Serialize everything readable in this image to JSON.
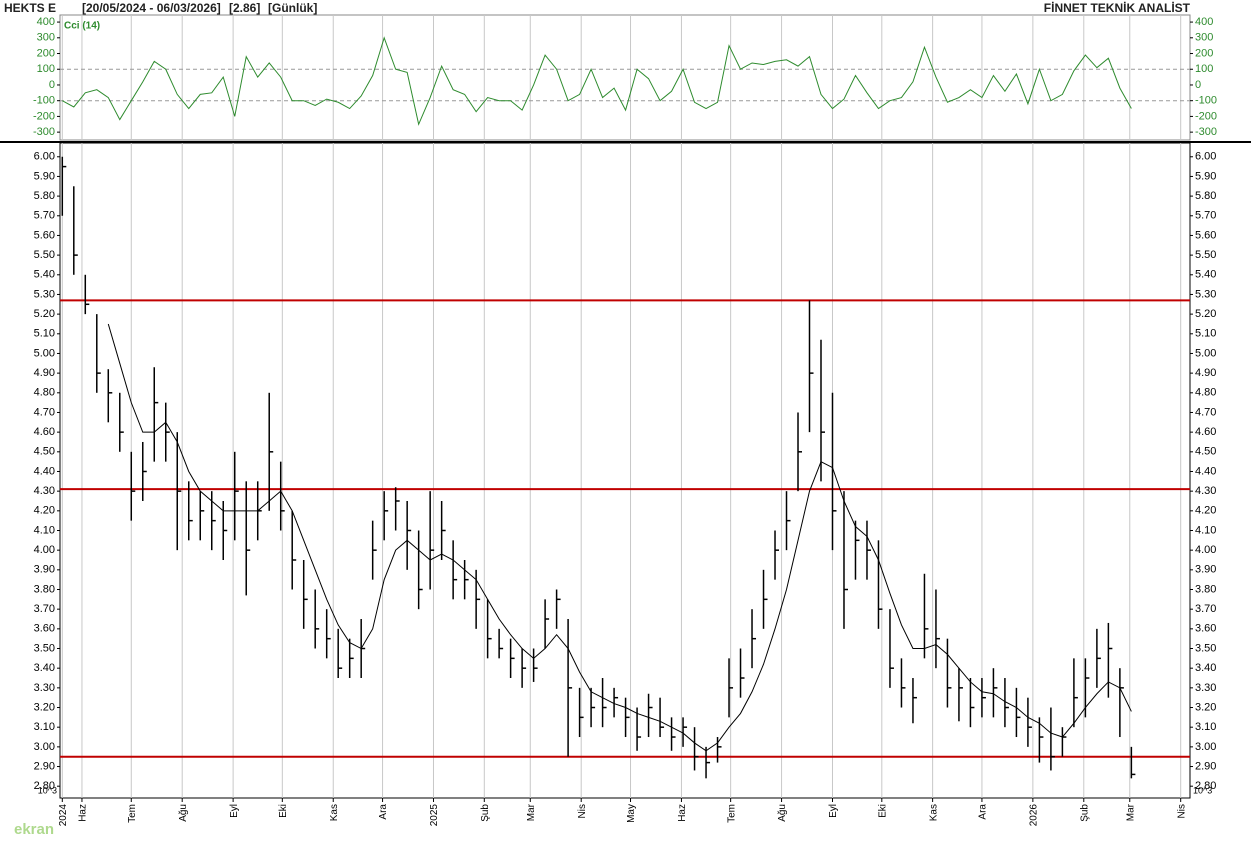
{
  "header": {
    "symbol": "HEKTS E",
    "range": "[20/05/2024 - 06/03/2026]",
    "last": "[2.86]",
    "period": "[Günlük]",
    "provider": "FİNNET TEKNİK ANALİST"
  },
  "watermark": "ekran",
  "chart_data": [
    {
      "type": "line",
      "series": [
        {
          "name": "Cci (14)",
          "color": "#2e8b2e",
          "values": [
            -100,
            -140,
            -50,
            -30,
            -80,
            -220,
            -100,
            20,
            150,
            100,
            -60,
            -150,
            -60,
            -50,
            50,
            -200,
            180,
            50,
            140,
            50,
            -100,
            -100,
            -130,
            -90,
            -110,
            -150,
            -70,
            60,
            300,
            100,
            80,
            -250,
            -80,
            120,
            -30,
            -60,
            -170,
            -80,
            -100,
            -100,
            -160,
            0,
            190,
            100,
            -100,
            -60,
            100,
            -80,
            -20,
            -160,
            100,
            40,
            -100,
            -40,
            100,
            -110,
            -150,
            -110,
            250,
            100,
            140,
            130,
            150,
            160,
            120,
            180,
            -60,
            -150,
            -90,
            60,
            -50,
            -150,
            -100,
            -80,
            20,
            240,
            50,
            -110,
            -80,
            -30,
            -80,
            60,
            -40,
            70,
            -120,
            100,
            -100,
            -60,
            90,
            190,
            110,
            170,
            -20,
            -150
          ]
        }
      ],
      "xlim": [
        -0.2,
        98.1
      ],
      "ylim": [
        -350,
        445
      ],
      "yticks": [
        -300,
        -200,
        -100,
        0,
        100,
        200,
        300,
        400
      ],
      "ref_lines": [
        -100,
        100
      ]
    },
    {
      "type": "ohlc",
      "color": "#000000",
      "unit_label": "10^3",
      "grid": true,
      "high": [
        6.0,
        5.85,
        5.4,
        5.2,
        4.92,
        4.8,
        4.5,
        4.55,
        4.93,
        4.75,
        4.6,
        4.35,
        4.3,
        4.3,
        4.25,
        4.5,
        4.35,
        4.35,
        4.8,
        4.45,
        4.2,
        3.95,
        3.8,
        3.7,
        3.6,
        3.55,
        3.65,
        4.15,
        4.3,
        4.32,
        4.25,
        4.1,
        4.3,
        4.25,
        4.05,
        3.95,
        3.9,
        3.75,
        3.6,
        3.55,
        3.5,
        3.5,
        3.75,
        3.8,
        3.65,
        3.3,
        3.3,
        3.35,
        3.3,
        3.25,
        3.2,
        3.27,
        3.25,
        3.15,
        3.15,
        3.1,
        3.0,
        3.05,
        3.45,
        3.5,
        3.7,
        3.9,
        4.1,
        4.3,
        4.7,
        5.27,
        5.07,
        4.8,
        4.3,
        4.15,
        4.15,
        4.05,
        3.7,
        3.45,
        3.35,
        3.88,
        3.8,
        3.55,
        3.4,
        3.35,
        3.35,
        3.4,
        3.35,
        3.3,
        3.25,
        3.15,
        3.2,
        3.1,
        3.45,
        3.45,
        3.6,
        3.63,
        3.4,
        3.0
      ],
      "low": [
        5.7,
        5.4,
        5.2,
        4.8,
        4.65,
        4.5,
        4.15,
        4.25,
        4.45,
        4.45,
        4.0,
        4.05,
        4.05,
        4.0,
        3.95,
        4.05,
        3.77,
        4.05,
        4.2,
        4.1,
        3.8,
        3.6,
        3.5,
        3.45,
        3.35,
        3.35,
        3.35,
        3.85,
        4.05,
        4.1,
        3.9,
        3.7,
        3.8,
        3.95,
        3.75,
        3.75,
        3.6,
        3.45,
        3.45,
        3.35,
        3.3,
        3.33,
        3.5,
        3.6,
        2.95,
        3.05,
        3.1,
        3.1,
        3.15,
        3.05,
        2.98,
        3.05,
        3.05,
        2.98,
        3.0,
        2.88,
        2.84,
        2.92,
        3.15,
        3.25,
        3.4,
        3.6,
        3.85,
        4.0,
        4.3,
        4.6,
        4.35,
        4.0,
        3.6,
        3.85,
        3.85,
        3.6,
        3.3,
        3.2,
        3.12,
        3.45,
        3.4,
        3.2,
        3.13,
        3.1,
        3.15,
        3.15,
        3.1,
        3.05,
        3.0,
        2.92,
        2.88,
        2.95,
        3.1,
        3.15,
        3.3,
        3.25,
        3.05,
        2.84
      ],
      "close": [
        5.95,
        5.5,
        5.25,
        4.9,
        4.8,
        4.6,
        4.3,
        4.4,
        4.75,
        4.6,
        4.3,
        4.15,
        4.2,
        4.15,
        4.1,
        4.3,
        4.0,
        4.2,
        4.5,
        4.2,
        3.95,
        3.75,
        3.6,
        3.55,
        3.4,
        3.45,
        3.5,
        4.0,
        4.2,
        4.25,
        4.1,
        3.8,
        4.0,
        4.1,
        3.85,
        3.85,
        3.75,
        3.55,
        3.5,
        3.45,
        3.4,
        3.4,
        3.65,
        3.75,
        3.3,
        3.15,
        3.2,
        3.2,
        3.25,
        3.15,
        3.05,
        3.2,
        3.1,
        3.05,
        3.1,
        2.95,
        2.92,
        3.0,
        3.3,
        3.35,
        3.55,
        3.75,
        4.0,
        4.15,
        4.5,
        4.9,
        4.6,
        4.2,
        3.8,
        4.05,
        4.0,
        3.7,
        3.4,
        3.3,
        3.25,
        3.6,
        3.55,
        3.3,
        3.3,
        3.2,
        3.25,
        3.3,
        3.2,
        3.15,
        3.1,
        3.05,
        2.95,
        3.05,
        3.25,
        3.35,
        3.45,
        3.5,
        3.3,
        2.86
      ],
      "ma": {
        "color": "#000000",
        "values": [
          null,
          null,
          null,
          null,
          5.15,
          4.95,
          4.75,
          4.6,
          4.6,
          4.65,
          4.55,
          4.4,
          4.3,
          4.25,
          4.2,
          4.2,
          4.2,
          4.2,
          4.25,
          4.3,
          4.2,
          4.05,
          3.9,
          3.75,
          3.62,
          3.53,
          3.5,
          3.6,
          3.85,
          4.0,
          4.05,
          4.0,
          3.95,
          3.98,
          3.95,
          3.9,
          3.85,
          3.75,
          3.65,
          3.57,
          3.5,
          3.45,
          3.5,
          3.57,
          3.5,
          3.38,
          3.28,
          3.25,
          3.22,
          3.2,
          3.17,
          3.15,
          3.13,
          3.1,
          3.07,
          3.02,
          2.98,
          3.02,
          3.1,
          3.17,
          3.28,
          3.42,
          3.6,
          3.8,
          4.05,
          4.3,
          4.45,
          4.42,
          4.25,
          4.12,
          4.07,
          3.95,
          3.78,
          3.62,
          3.5,
          3.5,
          3.52,
          3.47,
          3.4,
          3.33,
          3.28,
          3.27,
          3.23,
          3.2,
          3.15,
          3.12,
          3.07,
          3.05,
          3.12,
          3.2,
          3.27,
          3.33,
          3.3,
          3.18
        ]
      },
      "hlines": {
        "color": "#c00000",
        "values": [
          5.27,
          4.31,
          2.95
        ]
      },
      "xlim": [
        -0.2,
        98.1
      ],
      "xticks": [
        {
          "value": 0,
          "label": "2024"
        },
        {
          "value": 1.71,
          "label": "Haz"
        },
        {
          "value": 6.0,
          "label": "Tem"
        },
        {
          "value": 10.43,
          "label": "Ağu"
        },
        {
          "value": 14.86,
          "label": "Eyl"
        },
        {
          "value": 19.14,
          "label": "Eki"
        },
        {
          "value": 23.57,
          "label": "Kas"
        },
        {
          "value": 27.86,
          "label": "Ara"
        },
        {
          "value": 32.29,
          "label": "2025"
        },
        {
          "value": 36.71,
          "label": "Şub"
        },
        {
          "value": 40.71,
          "label": "Mar"
        },
        {
          "value": 45.14,
          "label": "Nis"
        },
        {
          "value": 49.43,
          "label": "May"
        },
        {
          "value": 53.86,
          "label": "Haz"
        },
        {
          "value": 58.14,
          "label": "Tem"
        },
        {
          "value": 62.57,
          "label": "Ağu"
        },
        {
          "value": 67.0,
          "label": "Eyl"
        },
        {
          "value": 71.29,
          "label": "Eki"
        },
        {
          "value": 75.71,
          "label": "Kas"
        },
        {
          "value": 80.0,
          "label": "Ara"
        },
        {
          "value": 84.43,
          "label": "2026"
        },
        {
          "value": 88.86,
          "label": "Şub"
        },
        {
          "value": 92.86,
          "label": "Mar"
        },
        {
          "value": 97.29,
          "label": "Nis"
        }
      ],
      "ylim": [
        2.74,
        6.07
      ],
      "yticks": [
        {
          "value": 2.8,
          "label": "2.80"
        },
        {
          "value": 2.9,
          "label": "2.90"
        },
        {
          "value": 3.0,
          "label": "3.00"
        },
        {
          "value": 3.1,
          "label": "3.10"
        },
        {
          "value": 3.2,
          "label": "3.20"
        },
        {
          "value": 3.3,
          "label": "3.30"
        },
        {
          "value": 3.4,
          "label": "3.40"
        },
        {
          "value": 3.5,
          "label": "3.50"
        },
        {
          "value": 3.6,
          "label": "3.60"
        },
        {
          "value": 3.7,
          "label": "3.70"
        },
        {
          "value": 3.8,
          "label": "3.80"
        },
        {
          "value": 3.9,
          "label": "3.90"
        },
        {
          "value": 4.0,
          "label": "4.00"
        },
        {
          "value": 4.1,
          "label": "4.10"
        },
        {
          "value": 4.2,
          "label": "4.20"
        },
        {
          "value": 4.3,
          "label": "4.30"
        },
        {
          "value": 4.4,
          "label": "4.40"
        },
        {
          "value": 4.5,
          "label": "4.50"
        },
        {
          "value": 4.6,
          "label": "4.60"
        },
        {
          "value": 4.7,
          "label": "4.70"
        },
        {
          "value": 4.8,
          "label": "4.80"
        },
        {
          "value": 4.9,
          "label": "4.90"
        },
        {
          "value": 5.0,
          "label": "5.00"
        },
        {
          "value": 5.1,
          "label": "5.10"
        },
        {
          "value": 5.2,
          "label": "5.20"
        },
        {
          "value": 5.3,
          "label": "5.30"
        },
        {
          "value": 5.4,
          "label": "5.40"
        },
        {
          "value": 5.5,
          "label": "5.50"
        },
        {
          "value": 5.6,
          "label": "5.60"
        },
        {
          "value": 5.7,
          "label": "5.70"
        },
        {
          "value": 5.8,
          "label": "5.80"
        },
        {
          "value": 5.9,
          "label": "5.90"
        },
        {
          "value": 6.0,
          "label": "6.00"
        }
      ]
    }
  ]
}
